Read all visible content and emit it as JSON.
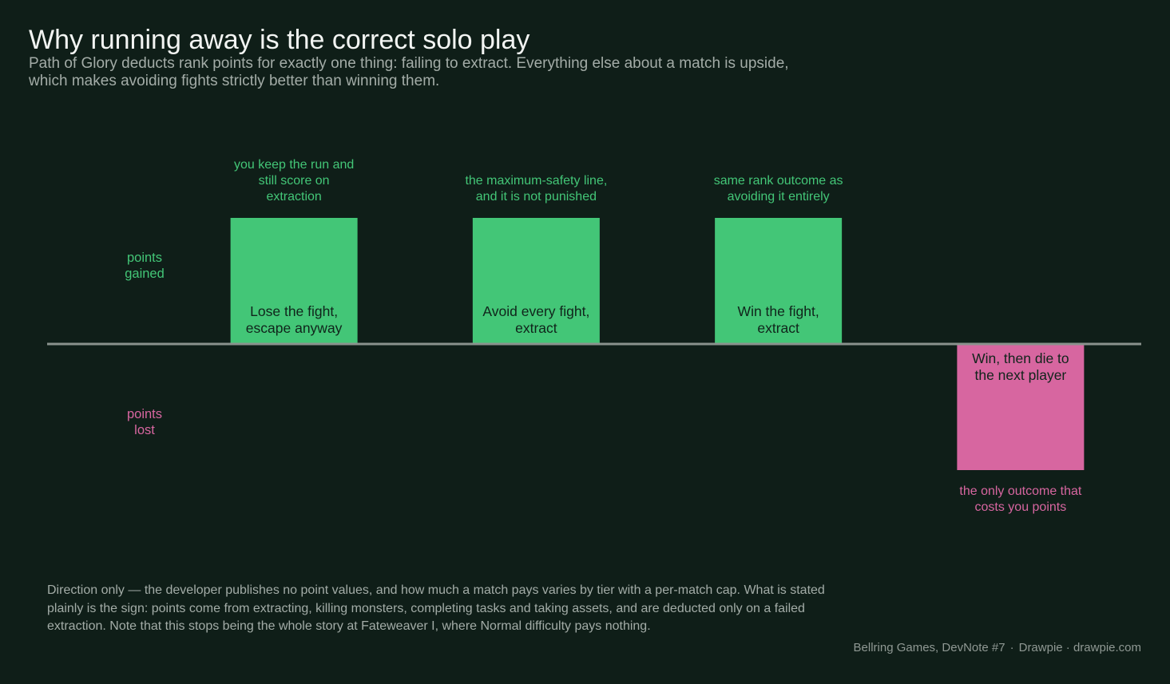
{
  "header": {
    "title": "Why running away is the correct solo play",
    "subtitle": "Path of Glory deducts rank points for exactly one thing: failing to extract. Everything else about a match is upside, which makes avoiding fights strictly better than winning them."
  },
  "chart_data": {
    "type": "bar",
    "categories": [
      "Lose the fight, escape anyway",
      "Avoid every fight, extract",
      "Win the fight, extract",
      "Win, then die to the next player"
    ],
    "values": [
      1,
      1,
      1,
      -1
    ],
    "ylim": [
      -1,
      1
    ],
    "ylabel_positive": "points gained",
    "ylabel_negative": "points lost",
    "annotations": [
      "you keep the run and still score on extraction",
      "the maximum-safety line, and it is not punished",
      "same rank outcome as avoiding it entirely",
      "the only outcome that costs you points"
    ],
    "grid": false,
    "colors": {
      "positive": "#43c677",
      "negative": "#d766a0",
      "baseline": "#8a928d"
    }
  },
  "footnote": "Direction only — the developer publishes no point values, and how much a match pays varies by tier with a per-match cap. What is stated plainly is the sign: points come from extracting, killing monsters, completing tasks and taking assets, and are deducted only on a failed extraction. Note that this stops being the whole story at Fateweaver I, where Normal difficulty pays nothing.",
  "source": {
    "origin": "Bellring Games, DevNote #7",
    "tool": "Drawpie · drawpie.com"
  }
}
